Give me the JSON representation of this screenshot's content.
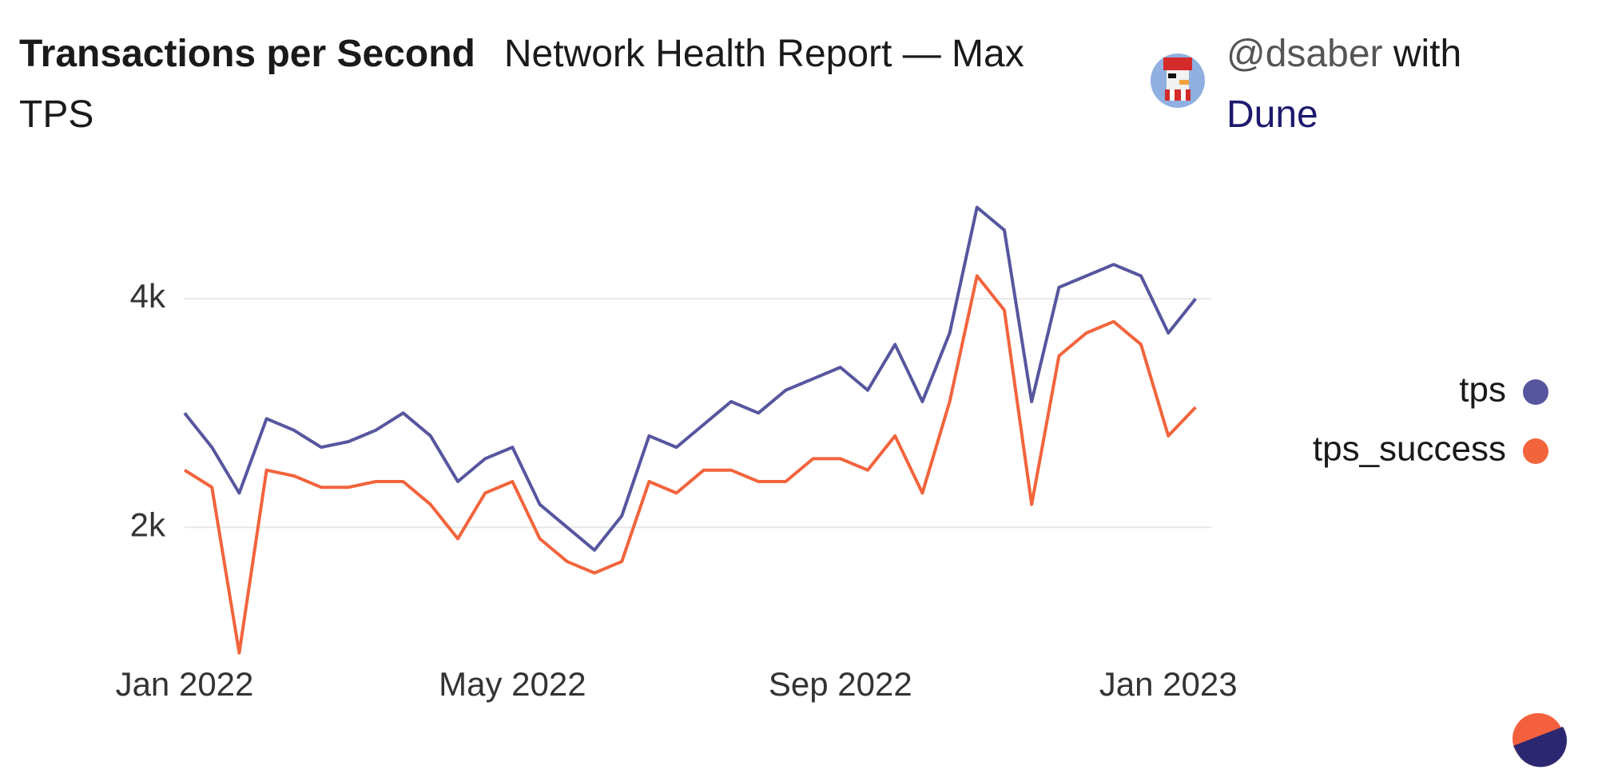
{
  "header": {
    "author": "@dsaber",
    "joiner": "with",
    "platform": "Dune"
  },
  "chart_data": {
    "type": "line",
    "title": "Transactions per Second",
    "subtitle": "Network Health Report — Max TPS",
    "categories": [
      "Jan 2022",
      null,
      null,
      null,
      null,
      null,
      null,
      null,
      null,
      null,
      null,
      null,
      "May 2022",
      null,
      null,
      null,
      null,
      null,
      null,
      null,
      null,
      null,
      null,
      null,
      "Sep 2022",
      null,
      null,
      null,
      null,
      null,
      null,
      null,
      null,
      null,
      null,
      null,
      "Jan 2023",
      null
    ],
    "series": [
      {
        "name": "tps",
        "color": "#56569f",
        "values": [
          3000,
          2700,
          2300,
          2950,
          2850,
          2700,
          2750,
          2850,
          3000,
          2800,
          2400,
          2600,
          2700,
          2200,
          2000,
          1800,
          2100,
          2800,
          2700,
          2900,
          3100,
          3000,
          3200,
          3300,
          3400,
          3200,
          3600,
          3100,
          3700,
          4800,
          4600,
          3100,
          4100,
          4200,
          4300,
          4200,
          3700,
          4000
        ]
      },
      {
        "name": "tps_success",
        "color": "#f2643c",
        "values": [
          2500,
          2350,
          900,
          2500,
          2450,
          2350,
          2350,
          2400,
          2400,
          2200,
          1900,
          2300,
          2400,
          1900,
          1700,
          1600,
          1700,
          2400,
          2300,
          2500,
          2500,
          2400,
          2400,
          2600,
          2600,
          2500,
          2800,
          2300,
          3100,
          4200,
          3900,
          2200,
          3500,
          3700,
          3800,
          3600,
          2800,
          3050
        ]
      }
    ],
    "ylim": [
      800,
      5000
    ],
    "yticks": [
      {
        "value": 2000,
        "label": "2k"
      },
      {
        "value": 4000,
        "label": "4k"
      }
    ],
    "grid": true,
    "legend": "right"
  }
}
